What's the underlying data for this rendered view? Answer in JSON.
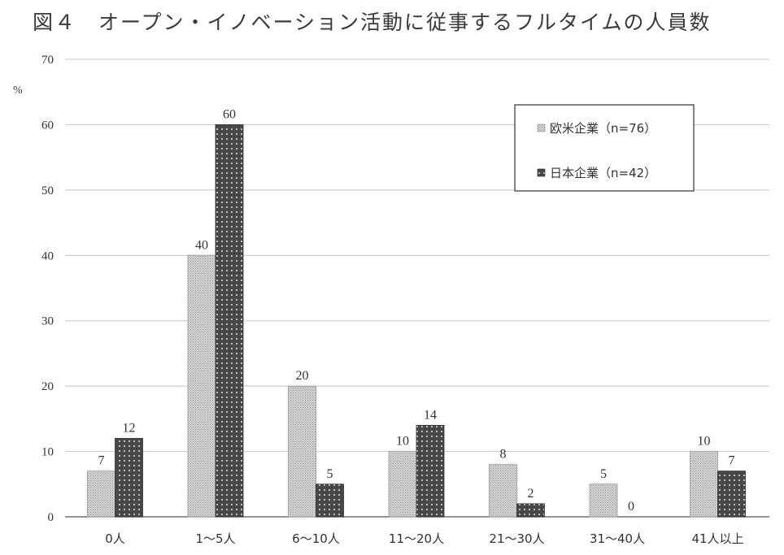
{
  "title": "図４　オープン・イノベーション活動に従事するフルタイムの人員数",
  "chart_data": {
    "type": "bar",
    "categories": [
      "0人",
      "1〜5人",
      "6〜10人",
      "11〜20人",
      "21〜30人",
      "31〜40人",
      "41人以上"
    ],
    "series": [
      {
        "name": "欧米企業（n=76）",
        "values": [
          7,
          40,
          20,
          10,
          8,
          5,
          10
        ],
        "color": "#bcbcbc"
      },
      {
        "name": "日本企業（n=42）",
        "values": [
          12,
          60,
          5,
          14,
          2,
          0,
          7
        ],
        "color": "#4a4a4a"
      }
    ],
    "ylabel": "%",
    "ylim": [
      0,
      70
    ],
    "yticks": [
      0,
      10,
      20,
      30,
      40,
      50,
      60,
      70
    ],
    "grid": true,
    "legend_position": "top-right"
  }
}
